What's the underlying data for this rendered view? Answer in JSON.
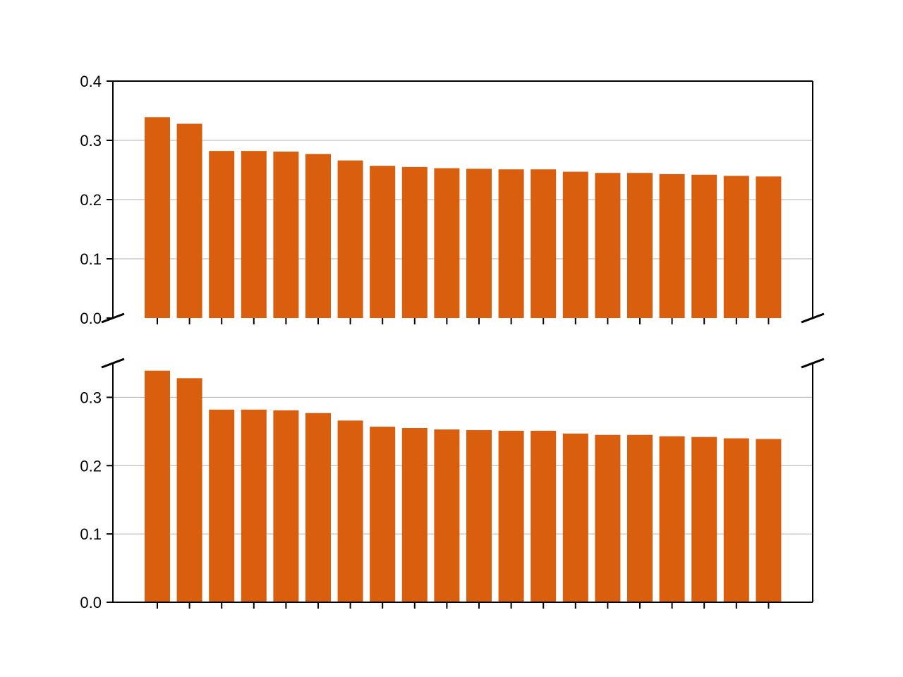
{
  "chart_data": [
    {
      "type": "bar",
      "panel": "top",
      "values": [
        0.339,
        0.328,
        0.282,
        0.282,
        0.281,
        0.277,
        0.266,
        0.257,
        0.255,
        0.253,
        0.252,
        0.251,
        0.251,
        0.247,
        0.245,
        0.245,
        0.243,
        0.242,
        0.24,
        0.239
      ],
      "ylim": [
        0.0,
        0.4
      ],
      "yticks": [
        0.0,
        0.1,
        0.2,
        0.3,
        0.4
      ],
      "ytick_labels": [
        "0.0",
        "0.1",
        "0.2",
        "0.3",
        "0.4"
      ],
      "grid": "horizontal",
      "color": "#d95f0e",
      "broken_axis": "bottom"
    },
    {
      "type": "bar",
      "panel": "bottom",
      "values": [
        0.339,
        0.328,
        0.282,
        0.282,
        0.281,
        0.277,
        0.266,
        0.257,
        0.255,
        0.253,
        0.252,
        0.251,
        0.251,
        0.247,
        0.245,
        0.245,
        0.243,
        0.242,
        0.24,
        0.239
      ],
      "ylim": [
        0.0,
        0.35
      ],
      "yticks": [
        0.0,
        0.1,
        0.2,
        0.3
      ],
      "ytick_labels": [
        "0.0",
        "0.1",
        "0.2",
        "0.3"
      ],
      "grid": "horizontal",
      "color": "#d95f0e",
      "broken_axis": "top"
    }
  ]
}
